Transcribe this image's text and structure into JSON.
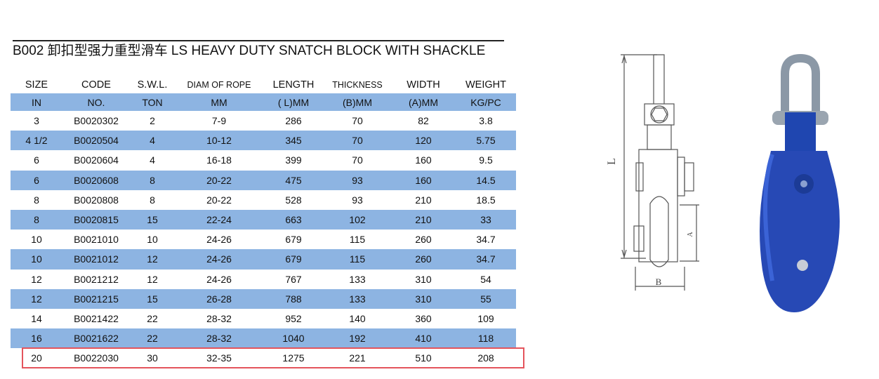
{
  "header": {
    "title": "B002 卸扣型强力重型滑车 LS HEAVY DUTY SNATCH BLOCK WITH SHACKLE"
  },
  "table": {
    "header_rows": [
      [
        "SIZE",
        "CODE",
        "S.W.L.",
        "DIAM OF ROPE",
        "LENGTH",
        "THICKNESS",
        "WIDTH",
        "WEIGHT"
      ],
      [
        "IN",
        "NO.",
        "TON",
        "MM",
        "( L)MM",
        "(B)MM",
        "(A)MM",
        "KG/PC"
      ]
    ],
    "rows": [
      [
        "3",
        "B0020302",
        "2",
        "7-9",
        "286",
        "70",
        "82",
        "3.8"
      ],
      [
        "4 1/2",
        "B0020504",
        "4",
        "10-12",
        "345",
        "70",
        "120",
        "5.75"
      ],
      [
        "6",
        "B0020604",
        "4",
        "16-18",
        "399",
        "70",
        "160",
        "9.5"
      ],
      [
        "6",
        "B0020608",
        "8",
        "20-22",
        "475",
        "93",
        "160",
        "14.5"
      ],
      [
        "8",
        "B0020808",
        "8",
        "20-22",
        "528",
        "93",
        "210",
        "18.5"
      ],
      [
        "8",
        "B0020815",
        "15",
        "22-24",
        "663",
        "102",
        "210",
        "33"
      ],
      [
        "10",
        "B0021010",
        "10",
        "24-26",
        "679",
        "115",
        "260",
        "34.7"
      ],
      [
        "10",
        "B0021012",
        "12",
        "24-26",
        "679",
        "115",
        "260",
        "34.7"
      ],
      [
        "12",
        "B0021212",
        "12",
        "24-26",
        "767",
        "133",
        "310",
        "54"
      ],
      [
        "12",
        "B0021215",
        "15",
        "26-28",
        "788",
        "133",
        "310",
        "55"
      ],
      [
        "14",
        "B0021422",
        "22",
        "28-32",
        "952",
        "140",
        "360",
        "109"
      ],
      [
        "16",
        "B0021622",
        "22",
        "28-32",
        "1040",
        "192",
        "410",
        "118"
      ],
      [
        "20",
        "B0022030",
        "30",
        "32-35",
        "1275",
        "221",
        "510",
        "208"
      ]
    ]
  },
  "diagram": {
    "labels": [
      "L",
      "B",
      "A"
    ]
  }
}
